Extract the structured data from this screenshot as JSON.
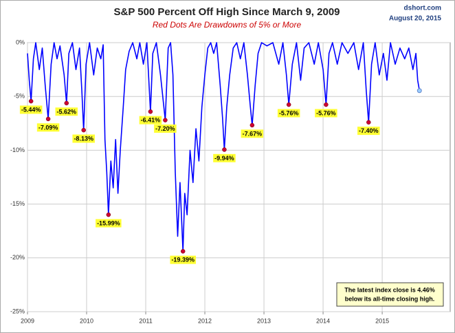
{
  "chart_data": {
    "type": "line",
    "title": "S&P 500 Percent Off High Since March 9, 2009",
    "subtitle": "Red Dots Are Drawdowns of 5% or More",
    "source": "dshort.com",
    "date": "August 20, 2015",
    "annotation": [
      "The latest index close is 4.46%",
      "below its all-time closing high."
    ],
    "xlim": [
      2009,
      2016.15
    ],
    "xticks": [
      2009,
      2010,
      2011,
      2012,
      2013,
      2014,
      2015
    ],
    "ylim": [
      -25,
      0
    ],
    "yticks": [
      {
        "value": 0,
        "label": "0%"
      },
      {
        "value": -5,
        "label": "-5%"
      },
      {
        "value": -10,
        "label": "-10%"
      },
      {
        "value": -15,
        "label": "-15%"
      },
      {
        "value": -20,
        "label": "-20%"
      },
      {
        "value": -25,
        "label": "-25%"
      }
    ],
    "grid": true,
    "series": [
      {
        "color": "#0000ff",
        "x": [
          2009.0,
          2009.03,
          2009.06,
          2009.1,
          2009.14,
          2009.2,
          2009.25,
          2009.3,
          2009.35,
          2009.4,
          2009.45,
          2009.5,
          2009.55,
          2009.62,
          2009.66,
          2009.7,
          2009.76,
          2009.82,
          2009.88,
          2009.92,
          2009.95,
          2009.99,
          2010.05,
          2010.12,
          2010.18,
          2010.24,
          2010.28,
          2010.31,
          2010.34,
          2010.37,
          2010.41,
          2010.45,
          2010.49,
          2010.53,
          2010.57,
          2010.62,
          2010.66,
          2010.72,
          2010.78,
          2010.85,
          2010.9,
          2010.96,
          2011.02,
          2011.08,
          2011.12,
          2011.18,
          2011.25,
          2011.33,
          2011.38,
          2011.42,
          2011.46,
          2011.5,
          2011.54,
          2011.58,
          2011.63,
          2011.66,
          2011.7,
          2011.75,
          2011.8,
          2011.85,
          2011.9,
          2011.95,
          2012.0,
          2012.05,
          2012.1,
          2012.15,
          2012.2,
          2012.26,
          2012.3,
          2012.33,
          2012.37,
          2012.42,
          2012.48,
          2012.54,
          2012.6,
          2012.66,
          2012.72,
          2012.77,
          2012.8,
          2012.85,
          2012.9,
          2012.96,
          2013.05,
          2013.15,
          2013.25,
          2013.32,
          2013.38,
          2013.42,
          2013.48,
          2013.55,
          2013.62,
          2013.68,
          2013.76,
          2013.85,
          2013.92,
          2014.0,
          2014.05,
          2014.1,
          2014.16,
          2014.24,
          2014.32,
          2014.42,
          2014.52,
          2014.6,
          2014.68,
          2014.73,
          2014.77,
          2014.82,
          2014.88,
          2014.95,
          2015.02,
          2015.08,
          2015.14,
          2015.22,
          2015.3,
          2015.38,
          2015.45,
          2015.52,
          2015.57,
          2015.6,
          2015.63
        ],
        "values": [
          -1,
          -3.5,
          -5.44,
          -1.5,
          0,
          -2.5,
          -0.5,
          -4,
          -7.09,
          -2,
          0,
          -1.5,
          -0.3,
          -3,
          -5.62,
          -1,
          0,
          -2.5,
          -0.5,
          -4.5,
          -8.13,
          -2,
          0,
          -3,
          -0.5,
          -1.5,
          -0.2,
          -9,
          -12,
          -15.99,
          -11,
          -13.5,
          -9,
          -14,
          -10,
          -6,
          -2.5,
          -0.8,
          0,
          -1.5,
          0,
          -2,
          0,
          -6.41,
          -1,
          0,
          -3,
          -7.2,
          -0.5,
          0,
          -3,
          -12,
          -18,
          -13,
          -19.39,
          -14,
          -16,
          -10,
          -13,
          -8,
          -11,
          -6,
          -3,
          -0.5,
          0,
          -1,
          0,
          -4,
          -7,
          -9.94,
          -6,
          -3,
          -0.5,
          0,
          -1.5,
          0,
          -3,
          -6,
          -7.67,
          -4,
          -1,
          0,
          -0.3,
          0,
          -2,
          0,
          -3,
          -5.76,
          -2,
          0,
          -3.5,
          -0.5,
          0,
          -2,
          0,
          -2.5,
          -5.76,
          -1,
          0,
          -2,
          0,
          -1,
          0,
          -2.5,
          0,
          -4.5,
          -7.4,
          -2,
          0,
          -3,
          -1,
          -3.5,
          0,
          -2,
          -0.5,
          -1.5,
          -0.5,
          -2.5,
          -1,
          -3.5,
          -4.46
        ]
      }
    ],
    "drawdowns": {
      "color": "#cc0033",
      "label_color": "#ffff33",
      "x": [
        2009.06,
        2009.35,
        2009.66,
        2009.95,
        2010.37,
        2011.08,
        2011.33,
        2011.63,
        2012.33,
        2012.8,
        2013.42,
        2014.05,
        2014.77
      ],
      "values": [
        -5.44,
        -7.09,
        -5.62,
        -8.13,
        -15.99,
        -6.41,
        -7.2,
        -19.39,
        -9.94,
        -7.67,
        -5.76,
        -5.76,
        -7.4
      ],
      "value_labels": [
        "-5.44%",
        "-7.09%",
        "-5.62%",
        "-8.13%",
        "-15.99%",
        "-6.41%",
        "-7.20%",
        "-19.39%",
        "-9.94%",
        "-7.67%",
        "-5.76%",
        "-5.76%",
        "-7.40%"
      ]
    },
    "latest_color": "#99ccff"
  }
}
